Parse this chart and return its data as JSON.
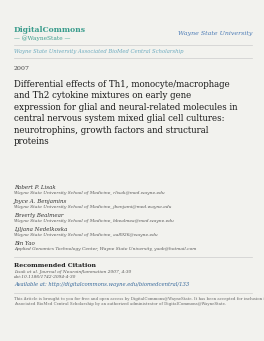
{
  "background_color": "#f2f2ee",
  "logo_text_line1": "DigitalCommons",
  "logo_text_line2": "— @WayneState —",
  "university_text": "Wayne State University",
  "header_line_text": "Wayne State University Associated BioMed Central Scholarship",
  "year": "2007",
  "title": "Differential effects of Th1, monocyte/macrophage\nand Th2 cytokine mixtures on early gene\nexpression for glial and neural-related molecules in\ncentral nervous system mixed glial cell cultures:\nneurotrophins, growth factors and structural\nproteins",
  "authors": [
    {
      "name": "Robert P. Lisak",
      "affil": "Wayne State University School of Medicine, rlisak@med.wayne.edu"
    },
    {
      "name": "Joyce A. Benjamins",
      "affil": "Wayne State University School of Medicine, jbenjami@med.wayne.edu"
    },
    {
      "name": "Beverly Bealmear",
      "affil": "Wayne State University School of Medicine, bbealmea@med.wayne.edu"
    },
    {
      "name": "Ljljana Nedelkoska",
      "affil": "Wayne State University School of Medicine, aa8926@wayne.edu"
    },
    {
      "name": "Bin Yao",
      "affil": "Applied Genomics Technology Center, Wayne State University, yaob@hotmail.com"
    }
  ],
  "rec_citation_label": "Recommended Citation",
  "rec_citation_text": "Lisak et al. Journal of Neuroinflammation 2007, 4:30\ndoi:10.1186/1742-2094-4-30",
  "available_text": "Available at: http://digitalcommons.wayne.edu/biomedcentral/133",
  "footer_text": "This Article is brought to you for free and open access by DigitalCommons@WayneState. It has been accepted for inclusion in Wayne State University\nAssociated BioMed Central Scholarship by an authorized administrator of DigitalCommons@WayneState.",
  "logo_color": "#3a9c8c",
  "university_color": "#4a7ab5",
  "header_line_color": "#6aaabf",
  "title_color": "#1a1a1a",
  "author_name_color": "#333333",
  "author_affil_color": "#555555",
  "citation_link_color": "#336699",
  "separator_color": "#cccccc",
  "footer_color": "#666666",
  "year_color": "#444444"
}
